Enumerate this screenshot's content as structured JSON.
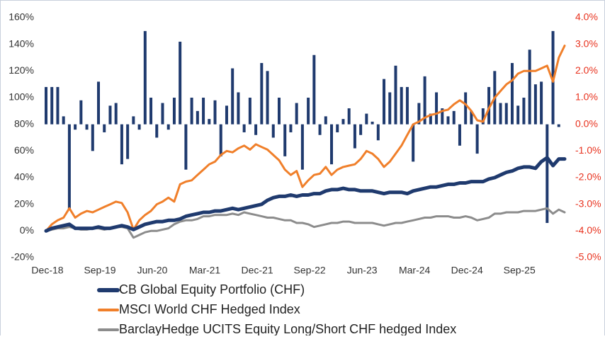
{
  "chart_data": {
    "type": "bar_line",
    "categories": [
      "Dec-18",
      null,
      null,
      null,
      null,
      null,
      null,
      null,
      null,
      "Sep-19",
      null,
      null,
      null,
      null,
      null,
      null,
      null,
      null,
      "Jun-20",
      null,
      null,
      null,
      null,
      null,
      null,
      null,
      null,
      "Mar-21",
      null,
      null,
      null,
      null,
      null,
      null,
      null,
      null,
      "Dec-21",
      null,
      null,
      null,
      null,
      null,
      null,
      null,
      null,
      "Sep-22",
      null,
      null,
      null,
      null,
      null,
      null,
      null,
      null,
      "Jun-23",
      null,
      null,
      null,
      null,
      null,
      null,
      null,
      null,
      "Mar-24",
      null,
      null,
      null,
      null,
      null,
      null,
      null,
      null,
      "Dec-24",
      null,
      null,
      null,
      null,
      null,
      null,
      null,
      null,
      "Sep-25",
      null,
      null,
      null,
      null,
      null,
      null,
      null,
      null
    ],
    "ylim": [
      -20,
      160
    ],
    "yticks": [
      {
        "value": -20,
        "label": "-20%"
      },
      {
        "value": 0,
        "label": "0%"
      },
      {
        "value": 20,
        "label": "20%"
      },
      {
        "value": 40,
        "label": "40%"
      },
      {
        "value": 60,
        "label": "60%"
      },
      {
        "value": 80,
        "label": "80%"
      },
      {
        "value": 100,
        "label": "100%"
      },
      {
        "value": 120,
        "label": "120%"
      },
      {
        "value": 140,
        "label": "140%"
      },
      {
        "value": 160,
        "label": "160%"
      }
    ],
    "y2lim": [
      -5,
      4
    ],
    "y2ticks": [
      {
        "value": -5,
        "label": "-5.0%"
      },
      {
        "value": -4,
        "label": "-4.0%"
      },
      {
        "value": -3,
        "label": "-3.0%"
      },
      {
        "value": -2,
        "label": "-2.0%"
      },
      {
        "value": -1,
        "label": "-1.0%"
      },
      {
        "value": 0,
        "label": "0.0%"
      },
      {
        "value": 1,
        "label": "1.0%"
      },
      {
        "value": 2,
        "label": "2.0%"
      },
      {
        "value": 3,
        "label": "3.0%"
      },
      {
        "value": 4,
        "label": "4.0%"
      }
    ],
    "y2_color": "#e8321e",
    "grid": false,
    "bars": {
      "color": "#1f3a6e",
      "axis": "y2",
      "values": [
        1.4,
        1.4,
        1.4,
        0.3,
        -3.2,
        -0.2,
        0.9,
        -0.2,
        -1.0,
        1.6,
        -0.3,
        0.7,
        0.8,
        -1.5,
        -1.3,
        0.3,
        -0.2,
        3.5,
        1.0,
        -0.5,
        0.8,
        -0.2,
        1.0,
        3.1,
        -1.7,
        1.0,
        0.5,
        1.0,
        0.2,
        0.9,
        -1.2,
        0.7,
        2.1,
        1.2,
        -0.3,
        1.0,
        -0.4,
        2.3,
        2.0,
        -0.5,
        1.0,
        -1.2,
        -0.3,
        0.8,
        -1.7,
        1.0,
        2.6,
        -0.4,
        0.3,
        -1.5,
        -0.3,
        0.2,
        0.6,
        -0.9,
        -0.4,
        0.4,
        0.1,
        -0.6,
        1.7,
        1.2,
        2.2,
        1.4,
        1.4,
        -1.4,
        0.8,
        1.8,
        0.4,
        1.2,
        0.6,
        0.3,
        0.5,
        -0.8,
        1.2,
        0.5,
        -1.1,
        0.6,
        1.4,
        2.0,
        0.8,
        0.8,
        2.3,
        0.7,
        1.0,
        2.8,
        1.5,
        1.6,
        -3.7,
        3.5,
        -0.1,
        null
      ]
    },
    "series": [
      {
        "name": "CB Global Equity Portfolio (CHF)",
        "color": "#1f3a6e",
        "values": [
          0,
          2,
          3,
          4,
          5,
          2,
          2,
          2,
          2,
          3,
          2,
          2,
          3,
          4,
          3,
          1,
          3,
          5,
          6,
          7,
          7,
          8,
          8,
          9,
          11,
          12,
          13,
          14,
          14,
          15,
          15,
          16,
          17,
          16,
          17,
          18,
          19,
          20,
          23,
          25,
          26,
          26,
          27,
          26,
          27,
          27,
          28,
          28,
          30,
          31,
          31,
          32,
          31,
          31,
          30,
          30,
          30,
          29,
          28,
          29,
          29,
          29,
          28,
          30,
          31,
          32,
          33,
          33,
          34,
          35,
          35,
          36,
          36,
          37,
          37,
          37,
          39,
          40,
          42,
          44,
          45,
          47,
          48,
          48,
          47,
          52,
          55,
          49,
          54,
          54
        ]
      },
      {
        "name": "MSCI World CHF Hedged Index",
        "color": "#f07f2a",
        "values": [
          0,
          5,
          8,
          10,
          17,
          10,
          13,
          15,
          14,
          16,
          18,
          20,
          22,
          21,
          14,
          1,
          8,
          12,
          15,
          20,
          22,
          25,
          22,
          35,
          37,
          38,
          42,
          46,
          50,
          52,
          57,
          60,
          59,
          62,
          64,
          61,
          65,
          63,
          61,
          57,
          53,
          46,
          42,
          45,
          33,
          38,
          42,
          43,
          48,
          42,
          46,
          48,
          49,
          50,
          54,
          60,
          58,
          54,
          48,
          52,
          58,
          64,
          72,
          80,
          82,
          85,
          87,
          88,
          90,
          91,
          95,
          98,
          95,
          90,
          83,
          82,
          92,
          100,
          105,
          110,
          113,
          118,
          120,
          120,
          120,
          122,
          124,
          112,
          130,
          139
        ]
      },
      {
        "name": "BarclayHedge UCITS Equity Long/Short CHF hedged Index",
        "color": "#8c8c8c",
        "values": [
          0,
          1,
          2,
          2,
          3,
          2,
          1,
          1,
          2,
          2,
          1,
          2,
          3,
          3,
          2,
          -5,
          -3,
          -1,
          0,
          0,
          1,
          2,
          5,
          7,
          8,
          8,
          9,
          11,
          11,
          12,
          12,
          12,
          13,
          12,
          14,
          13,
          12,
          11,
          10,
          10,
          9,
          8,
          8,
          6,
          6,
          5,
          3,
          4,
          5,
          6,
          6,
          7,
          7,
          6,
          6,
          6,
          6,
          5,
          4,
          5,
          6,
          6,
          7,
          8,
          9,
          10,
          10,
          11,
          11,
          11,
          10,
          10,
          11,
          10,
          8,
          9,
          10,
          13,
          13,
          14,
          14,
          14,
          15,
          15,
          15,
          16,
          17,
          13,
          16,
          14
        ]
      }
    ]
  }
}
